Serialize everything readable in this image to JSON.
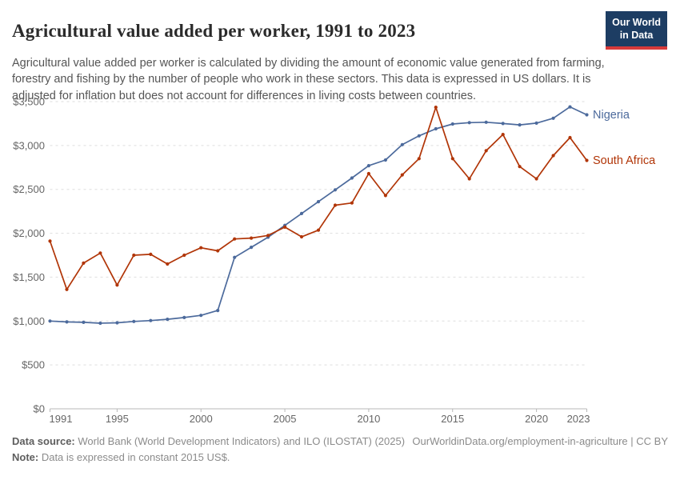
{
  "header": {
    "title": "Agricultural value added per worker, 1991 to 2023",
    "logo": {
      "line1": "Our World",
      "line2": "in Data",
      "bg_color": "#1d3d63",
      "stripe_color": "#d73a3a"
    }
  },
  "subtitle": "Agricultural value added per worker is calculated by dividing the amount of economic value generated from farming, forestry and fishing by the number of people who work in these sectors. This data is expressed in US dollars. It is adjusted for inflation but does not account for differences in living costs between countries.",
  "chart_data": {
    "type": "line",
    "title": "Agricultural value added per worker, 1991 to 2023",
    "xlabel": "",
    "ylabel": "",
    "xlim": [
      1991,
      2023
    ],
    "ylim": [
      0,
      3500
    ],
    "grid": "dashed-horizontal",
    "legend": "line-end-labels",
    "x_ticks": [
      1991,
      1995,
      2000,
      2005,
      2010,
      2015,
      2020,
      2023
    ],
    "y_ticks": [
      0,
      500,
      1000,
      1500,
      2000,
      2500,
      3000,
      3500
    ],
    "y_tick_labels": [
      "$0",
      "$500",
      "$1,000",
      "$1,500",
      "$2,000",
      "$2,500",
      "$3,000",
      "$3,500"
    ],
    "x": [
      1991,
      1992,
      1993,
      1994,
      1995,
      1996,
      1997,
      1998,
      1999,
      2000,
      2001,
      2002,
      2003,
      2004,
      2005,
      2006,
      2007,
      2008,
      2009,
      2010,
      2011,
      2012,
      2013,
      2014,
      2015,
      2016,
      2017,
      2018,
      2019,
      2020,
      2021,
      2022,
      2023
    ],
    "series": [
      {
        "name": "Nigeria",
        "color": "#4c6a9c",
        "values": [
          1000,
          990,
          985,
          975,
          980,
          995,
          1005,
          1020,
          1040,
          1065,
          1120,
          1725,
          1840,
          1955,
          2090,
          2225,
          2360,
          2495,
          2630,
          2770,
          2835,
          3010,
          3110,
          3190,
          3245,
          3260,
          3265,
          3250,
          3235,
          3255,
          3310,
          3440,
          3350
        ]
      },
      {
        "name": "South Africa",
        "color": "#b13507",
        "values": [
          1910,
          1360,
          1660,
          1775,
          1410,
          1750,
          1760,
          1650,
          1750,
          1835,
          1800,
          1935,
          1945,
          1975,
          2070,
          1960,
          2035,
          2320,
          2345,
          2680,
          2430,
          2665,
          2850,
          3435,
          2850,
          2620,
          2940,
          3125,
          2760,
          2620,
          2885,
          3090,
          2830
        ]
      }
    ]
  },
  "footer": {
    "source_label": "Data source:",
    "source_text": " World Bank (World Development Indicators) and ILO (ILOSTAT) (2025)",
    "link_text": "OurWorldinData.org/employment-in-agriculture | CC BY",
    "note_label": "Note:",
    "note_text": " Data is expressed in constant 2015 US$."
  }
}
